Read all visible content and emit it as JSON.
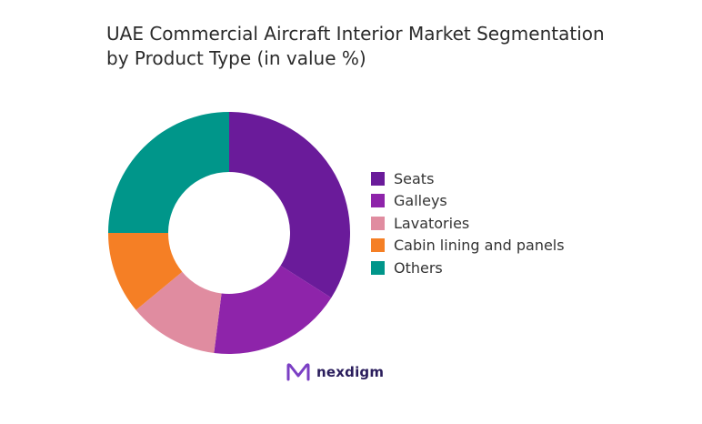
{
  "title_lines": [
    "UAE Commercial Aircraft Interior Market Segmentation",
    "by Product Type (in value %)"
  ],
  "chart_data": {
    "type": "pie",
    "variant": "donut",
    "title": "UAE Commercial Aircraft Interior Market Segmentation by Product Type (in value %)",
    "categories": [
      "Seats",
      "Galleys",
      "Lavatories",
      "Cabin lining and panels",
      "Others"
    ],
    "values": [
      34,
      18,
      12,
      11,
      25
    ],
    "colors": [
      "#6a1b9a",
      "#8e24aa",
      "#e08ca0",
      "#f57f25",
      "#00968a"
    ],
    "legend_position": "right"
  },
  "logo": {
    "text": "nexdigm",
    "icon": "nexdigm-logo-icon",
    "color": "#2a1d5c",
    "accent": "#7b3fc4"
  }
}
